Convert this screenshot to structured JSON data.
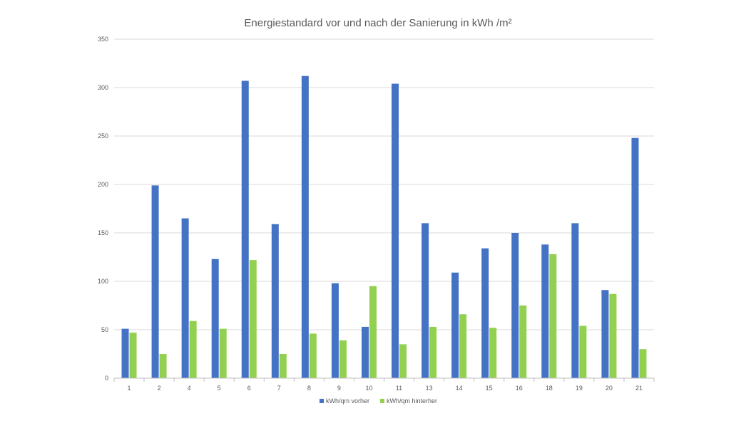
{
  "chart_data": {
    "type": "bar",
    "title": "Energiestandard vor und nach der Sanierung in kWh /m²",
    "xlabel": "",
    "ylabel": "",
    "categories": [
      "1",
      "2",
      "4",
      "5",
      "6",
      "7",
      "8",
      "9",
      "10",
      "11",
      "13",
      "14",
      "15",
      "16",
      "18",
      "19",
      "20",
      "21"
    ],
    "series": [
      {
        "name": "kWh/qm vorher",
        "color": "#4472c4",
        "values": [
          51,
          199,
          165,
          123,
          307,
          159,
          312,
          98,
          53,
          304,
          160,
          109,
          134,
          150,
          138,
          160,
          91,
          248
        ]
      },
      {
        "name": "kWh/qm hinterher",
        "color": "#92d050",
        "values": [
          47,
          25,
          59,
          51,
          122,
          25,
          46,
          39,
          95,
          35,
          53,
          66,
          52,
          75,
          128,
          54,
          87,
          30
        ]
      }
    ],
    "ylim": [
      0,
      350
    ],
    "yticks": [
      "0",
      "50",
      "100",
      "150",
      "200",
      "250",
      "300",
      "350"
    ],
    "grid": true,
    "legend": "bottom-center"
  }
}
